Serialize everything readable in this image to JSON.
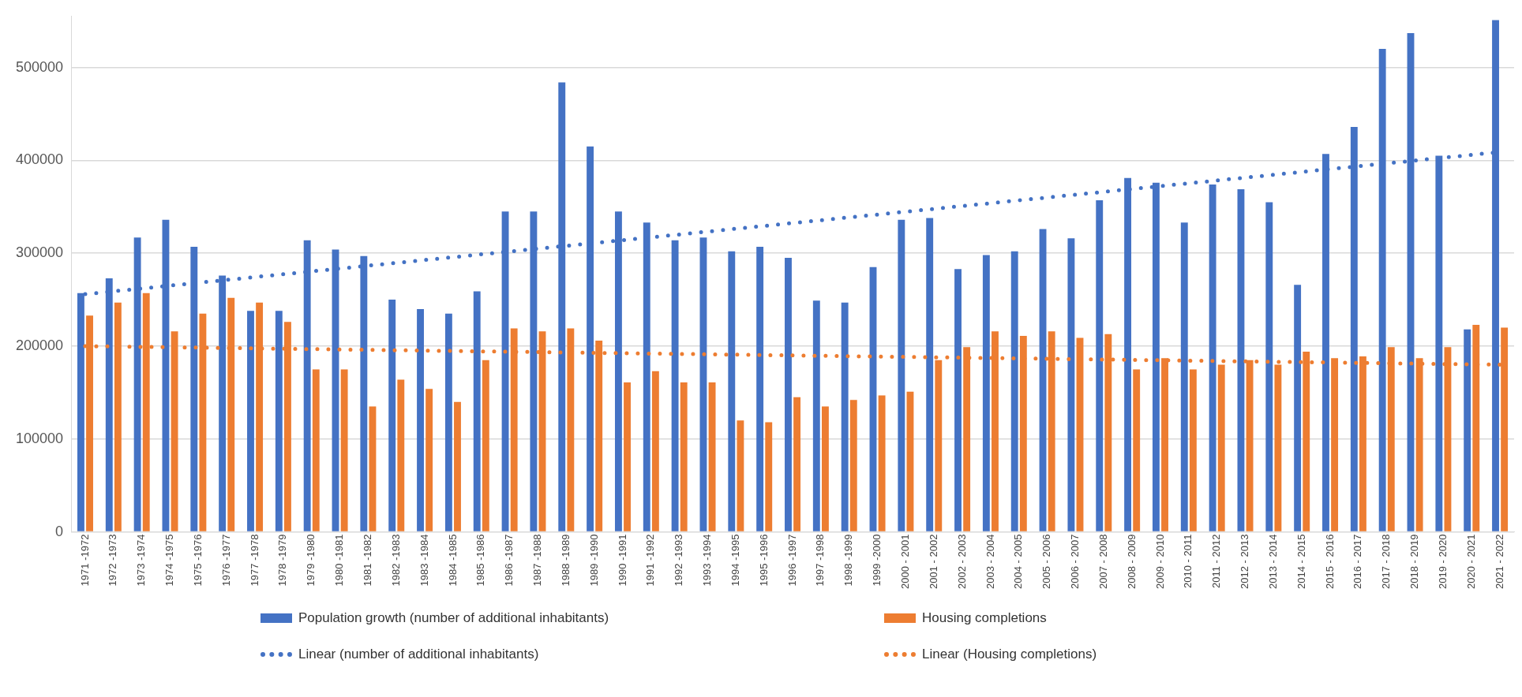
{
  "chart_data": {
    "type": "bar",
    "categories": [
      "1971 -1972",
      "1972 -1973",
      "1973 -1974",
      "1974 -1975",
      "1975 -1976",
      "1976 -1977",
      "1977 -1978",
      "1978 -1979",
      "1979 -1980",
      "1980 -1981",
      "1981 -1982",
      "1982 -1983",
      "1983 -1984",
      "1984 -1985",
      "1985 -1986",
      "1986 -1987",
      "1987 -1988",
      "1988 -1989",
      "1989 -1990",
      "1990 -1991",
      "1991 -1992",
      "1992 -1993",
      "1993 -1994",
      "1994 -1995",
      "1995 -1996",
      "1996 -1997",
      "1997 -1998",
      "1998 -1999",
      "1999 -2000",
      "2000 - 2001",
      "2001 - 2002",
      "2002 - 2003",
      "2003 - 2004",
      "2004 - 2005",
      "2005 - 2006",
      "2006 - 2007",
      "2007 - 2008",
      "2008 - 2009",
      "2009 - 2010",
      "2010 - 2011",
      "2011 - 2012",
      "2012 - 2013",
      "2013 - 2014",
      "2014 - 2015",
      "2015 - 2016",
      "2016 - 2017",
      "2017 - 2018",
      "2018 - 2019",
      "2019 - 2020",
      "2020 - 2021",
      "2021 - 2022"
    ],
    "series": [
      {
        "name": "Population growth (number of additional inhabitants)",
        "color": "#4472c4",
        "values": [
          257000,
          273000,
          317000,
          336000,
          307000,
          276000,
          238000,
          238000,
          314000,
          304000,
          297000,
          250000,
          240000,
          235000,
          259000,
          345000,
          345000,
          484000,
          415000,
          345000,
          333000,
          314000,
          317000,
          302000,
          307000,
          295000,
          249000,
          247000,
          285000,
          336000,
          338000,
          283000,
          298000,
          302000,
          326000,
          316000,
          357000,
          381000,
          376000,
          333000,
          374000,
          369000,
          355000,
          266000,
          407000,
          436000,
          520000,
          537000,
          405000,
          218000,
          551000
        ]
      },
      {
        "name": "Housing completions",
        "color": "#ed7d31",
        "values": [
          233000,
          247000,
          257000,
          216000,
          235000,
          252000,
          247000,
          226000,
          175000,
          175000,
          135000,
          164000,
          154000,
          140000,
          185000,
          219000,
          216000,
          219000,
          206000,
          161000,
          173000,
          161000,
          161000,
          120000,
          118000,
          145000,
          135000,
          142000,
          147000,
          151000,
          185000,
          199000,
          216000,
          211000,
          216000,
          209000,
          213000,
          175000,
          187000,
          175000,
          180000,
          185000,
          180000,
          194000,
          187000,
          189000,
          199000,
          187000,
          199000,
          223000,
          220000
        ]
      },
      {
        "name": "Linear (number of additional inhabitants)",
        "type": "line",
        "color": "#4472c4",
        "line_style": "dotted",
        "x": [
          "1971 -1972",
          "2021 - 2022"
        ],
        "values": [
          256000,
          409000
        ]
      },
      {
        "name": "Linear (Housing completions)",
        "type": "line",
        "color": "#ed7d31",
        "line_style": "dotted",
        "x": [
          "1971 -1972",
          "2021 - 2022"
        ],
        "values": [
          200000,
          180000
        ]
      }
    ],
    "ylim": [
      0,
      555000
    ],
    "yticks": [
      0,
      100000,
      200000,
      300000,
      400000,
      500000
    ],
    "grid": "y",
    "legend": "bottom"
  }
}
